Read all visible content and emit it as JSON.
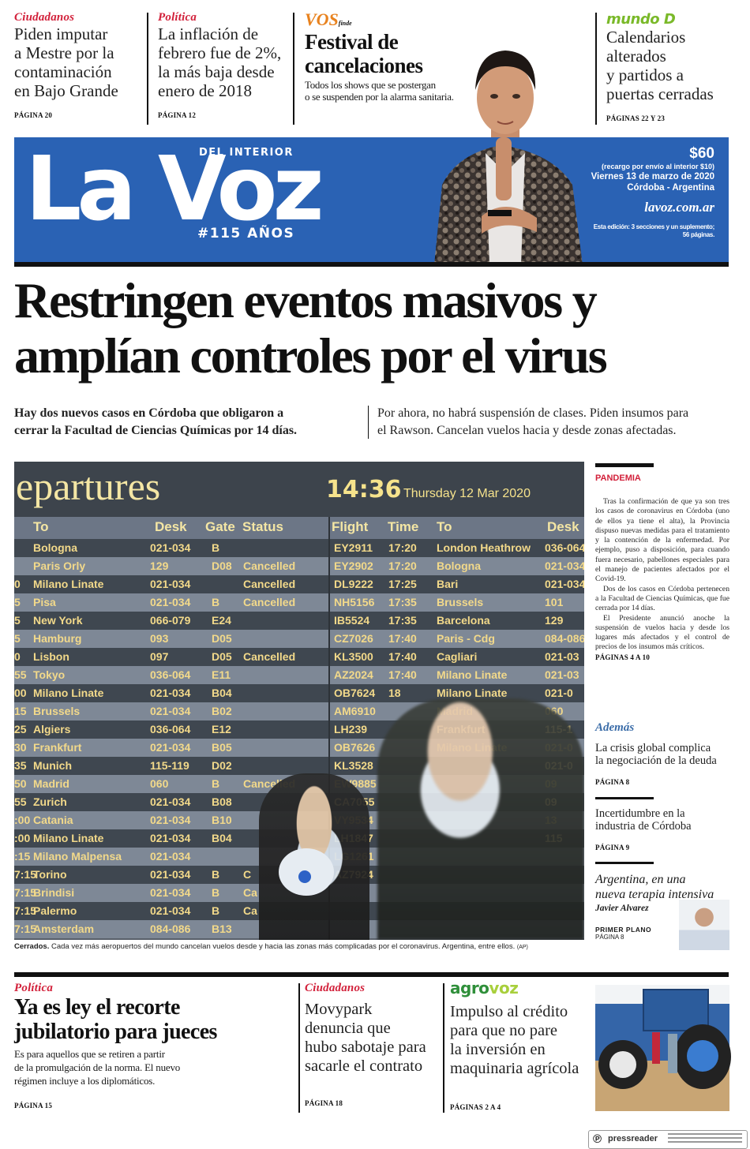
{
  "top_teasers": [
    {
      "kicker": "Ciudadanos",
      "headline_lines": [
        "Piden imputar",
        "a Mestre por la",
        "contaminación",
        "en Bajo Grande"
      ],
      "page": "PÁGINA 20"
    },
    {
      "kicker": "Política",
      "headline_lines": [
        "La inflación de",
        "febrero fue de 2%,",
        "la más baja desde",
        "enero de 2018"
      ],
      "page": "PÁGINA 12"
    },
    {
      "kicker": "VOS",
      "kicker_suffix": "finde",
      "headline_lines": [
        "Festival de",
        "cancelaciones"
      ],
      "deck_lines": [
        "Todos los shows que se postergan",
        "o se suspenden por la alarma sanitaria."
      ]
    },
    {
      "kicker": "mundo D",
      "headline_lines": [
        "Calendarios",
        "alterados",
        "y partidos a",
        "puertas cerradas"
      ],
      "page": "PÁGINAS 22 Y 23"
    }
  ],
  "masthead": {
    "logo": "La Voz",
    "subtitle": "DEL INTERIOR",
    "tagline": "#115 AÑOS",
    "price": "$60",
    "surcharge": "(recargo por envío al interior $10)",
    "date": "Viernes 13 de marzo de 2020",
    "location": "Córdoba - Argentina",
    "website": "lavoz.com.ar",
    "edition_lines": [
      "Esta edición: 3 secciones y un suplemento;",
      "56 páginas."
    ]
  },
  "main_story": {
    "headline_lines": [
      "Restringen eventos masivos y",
      "amplían controles por el virus"
    ],
    "deck_left_lines": [
      "Hay dos nuevos casos en Córdoba que obligaron a",
      "cerrar la Facultad de Ciencias Químicas por 14 días."
    ],
    "deck_right_lines": [
      "Por ahora, no habrá suspensión de clases. Piden insumos para",
      "el Rawson. Cancelan vuelos hacia y desde zonas afectadas."
    ]
  },
  "departures_board": {
    "title": "epartures",
    "time": "14:36",
    "date": "Thursday 12 Mar 2020",
    "left_headers": [
      "To",
      "Desk",
      "Gate",
      "Status"
    ],
    "right_headers": [
      "Flight",
      "Time",
      "To",
      "Desk"
    ],
    "left_rows": [
      [
        "",
        "Bologna",
        "021-034",
        "B",
        ""
      ],
      [
        "",
        "Paris Orly",
        "129",
        "D08",
        "Cancelled"
      ],
      [
        "0",
        "Milano Linate",
        "021-034",
        "",
        "Cancelled"
      ],
      [
        "5",
        "Pisa",
        "021-034",
        "B",
        "Cancelled"
      ],
      [
        "5",
        "New York",
        "066-079",
        "E24",
        ""
      ],
      [
        "5",
        "Hamburg",
        "093",
        "D05",
        ""
      ],
      [
        "0",
        "Lisbon",
        "097",
        "D05",
        "Cancelled"
      ],
      [
        "55",
        "Tokyo",
        "036-064",
        "E11",
        ""
      ],
      [
        "00",
        "Milano Linate",
        "021-034",
        "B04",
        ""
      ],
      [
        "15",
        "Brussels",
        "021-034",
        "B02",
        ""
      ],
      [
        "25",
        "Algiers",
        "036-064",
        "E12",
        ""
      ],
      [
        "30",
        "Frankfurt",
        "021-034",
        "B05",
        ""
      ],
      [
        "35",
        "Munich",
        "115-119",
        "D02",
        ""
      ],
      [
        "50",
        "Madrid",
        "060",
        "B",
        "Cancelled"
      ],
      [
        "55",
        "Zurich",
        "021-034",
        "B08",
        ""
      ],
      [
        ":00",
        "Catania",
        "021-034",
        "B10",
        ""
      ],
      [
        ":00",
        "Milano Linate",
        "021-034",
        "B04",
        ""
      ],
      [
        ":15",
        "Milano Malpensa",
        "021-034",
        "",
        ""
      ],
      [
        "7:15",
        "Torino",
        "021-034",
        "B",
        "C"
      ],
      [
        "7:15",
        "Brindisi",
        "021-034",
        "B",
        "Ca"
      ],
      [
        "7:15",
        "Palermo",
        "021-034",
        "B",
        "Ca"
      ],
      [
        "7:15",
        "Amsterdam",
        "084-086",
        "B13",
        ""
      ]
    ],
    "right_rows": [
      [
        "EY2911",
        "17:20",
        "London Heathrow",
        "036-064"
      ],
      [
        "EY2902",
        "17:20",
        "Bologna",
        "021-034"
      ],
      [
        "DL9222",
        "17:25",
        "Bari",
        "021-034"
      ],
      [
        "NH5156",
        "17:35",
        "Brussels",
        "101"
      ],
      [
        "IB5524",
        "17:35",
        "Barcelona",
        "129"
      ],
      [
        "CZ7026",
        "17:40",
        "Paris - Cdg",
        "084-086"
      ],
      [
        "KL3500",
        "17:40",
        "Cagliari",
        "021-03"
      ],
      [
        "AZ2024",
        "17:40",
        "Milano Linate",
        "021-03"
      ],
      [
        "OB7624",
        "18",
        "Milano Linate",
        "021-0"
      ],
      [
        "AM6910",
        "",
        "Madrid",
        "060"
      ],
      [
        "LH239",
        "",
        "Frankfurt",
        "115-1"
      ],
      [
        "OB7626",
        "",
        "Milano Linate",
        "021-0"
      ],
      [
        "KL3528",
        "",
        "",
        "021-0"
      ],
      [
        "EW9885",
        "",
        "",
        "09"
      ],
      [
        "CA7055",
        "",
        "",
        "09"
      ],
      [
        "VY9534",
        "",
        "",
        "13"
      ],
      [
        "LH1847",
        "",
        "",
        "115"
      ],
      [
        "LG1261",
        "",
        "",
        ""
      ],
      [
        "AZ7924",
        "",
        "",
        ""
      ]
    ]
  },
  "photo_caption": {
    "lead": "Cerrados.",
    "text": "Cada vez más aeropuertos del mundo cancelan vuelos desde y hacia las zonas más complicadas por el coronavirus. Argentina, entre ellos.",
    "credit": "(AP)"
  },
  "sidebar": {
    "kicker": "PANDEMIA",
    "paragraphs": [
      "Tras la confirmación de que ya son tres los casos de coronavirus en Córdoba (uno de ellos ya tiene el alta), la Provincia dispuso nuevas medidas para el tratamiento y la contención de la enfermedad. Por ejemplo, puso a disposición, para cuando fuera necesario, pabellones especiales para el manejo de pacientes afectados por el Covid-19.",
      "Dos de los casos en Córdoba pertenecen a la Facultad de Ciencias Químicas, que fue cerrada por 14 días.",
      "El Presidente anunció anoche la suspensión de vuelos hacia y desde los lugares más afectados y el control de precios de los insumos más críticos."
    ],
    "page": "PÁGINAS 4 A 10",
    "ademas_label": "Además",
    "items": [
      {
        "headline_lines": [
          "La crisis global complica",
          "la negociación de la deuda"
        ],
        "page": "PÁGINA 8"
      },
      {
        "headline_lines": [
          "Incertidumbre en la",
          "industria de Córdoba"
        ],
        "page": "PÁGINA 9"
      }
    ],
    "column": {
      "headline_lines": [
        "Argentina, en una",
        "nueva terapia intensiva"
      ],
      "author": "Javier Alvarez",
      "section": "PRIMER PLANO",
      "page": "PÁGINA 8"
    }
  },
  "bottom_stories": [
    {
      "kicker": "Política",
      "headline_lines": [
        "Ya es ley el recorte",
        "jubilatorio para jueces"
      ],
      "deck_lines": [
        "Es para aquellos que se retiren a partir",
        "de la promulgación de la norma. El nuevo",
        "régimen incluye a los diplomáticos."
      ],
      "page": "PÁGINA 15"
    },
    {
      "kicker": "Ciudadanos",
      "headline_lines": [
        "Movypark",
        "denuncia que",
        "hubo sabotaje para",
        "sacarle el contrato"
      ],
      "page": "PÁGINA 18"
    },
    {
      "kicker_a": "agro",
      "kicker_b": "voz",
      "headline_lines": [
        "Impulso al crédito",
        "para que no pare",
        "la inversión en",
        "maquinaria agrícola"
      ],
      "page": "PÁGINAS 2 A 4"
    }
  ],
  "footer": {
    "brand": "pressreader"
  },
  "colors": {
    "brand_blue": "#2a62b4",
    "kicker_red": "#d2203a",
    "vos_orange": "#e8821e",
    "mundod_green": "#7ab929",
    "agro_green": "#2f8f3a",
    "agro_lime": "#a8cf3c",
    "ademas_blue": "#3a6ca8"
  }
}
